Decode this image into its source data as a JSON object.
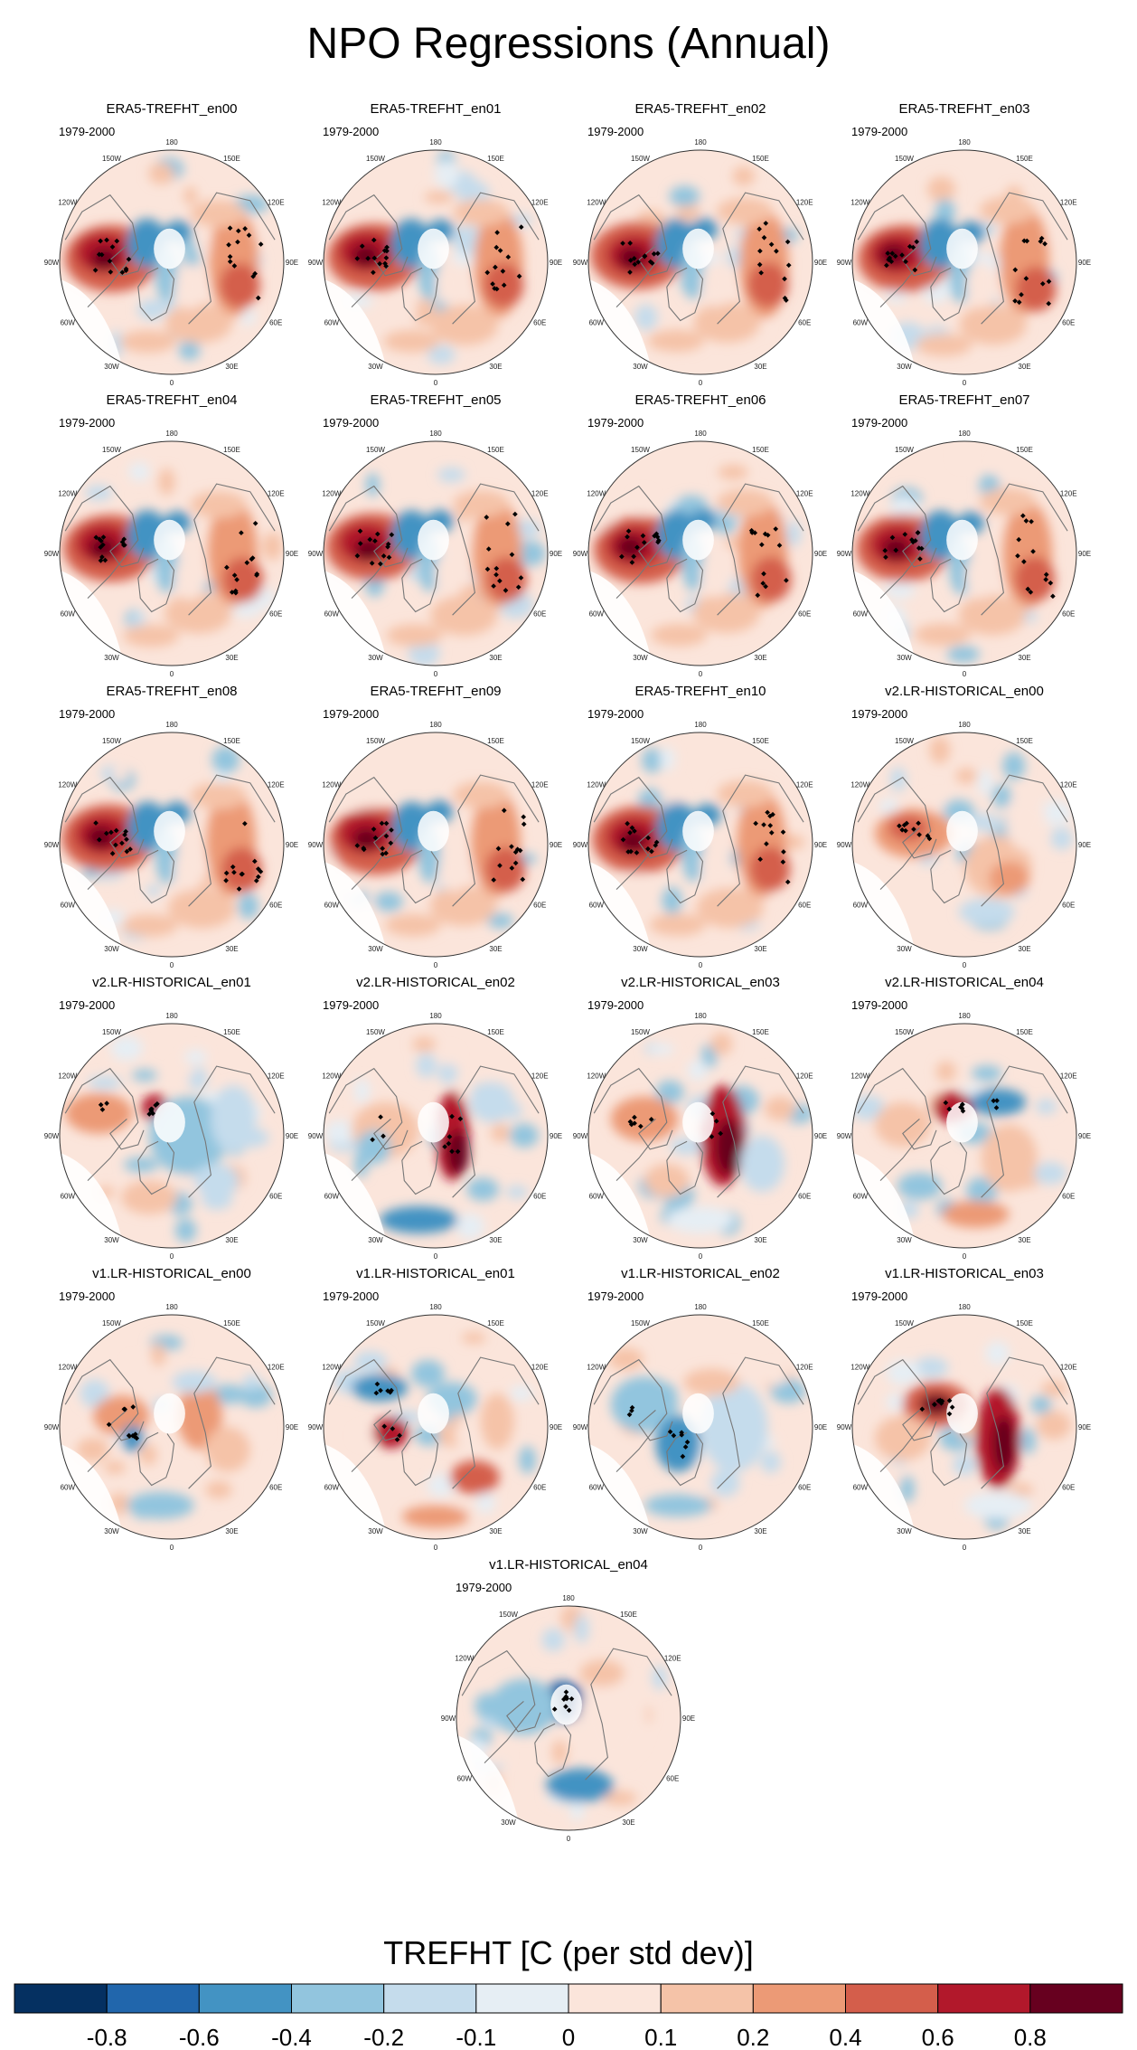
{
  "chart_data": {
    "type": "heatmap",
    "title": "NPO Regressions (Annual)",
    "projection": "polar stereographic, northern hemisphere",
    "period": "1979-2000",
    "longitude_labels": [
      "180",
      "150E",
      "120E",
      "90E",
      "60E",
      "30E",
      "0",
      "30W",
      "60W",
      "90W",
      "120W",
      "150W"
    ],
    "panels": [
      {
        "name": "ERA5-TREFHT_en00",
        "pattern": "era5"
      },
      {
        "name": "ERA5-TREFHT_en01",
        "pattern": "era5"
      },
      {
        "name": "ERA5-TREFHT_en02",
        "pattern": "era5"
      },
      {
        "name": "ERA5-TREFHT_en03",
        "pattern": "era5"
      },
      {
        "name": "ERA5-TREFHT_en04",
        "pattern": "era5"
      },
      {
        "name": "ERA5-TREFHT_en05",
        "pattern": "era5"
      },
      {
        "name": "ERA5-TREFHT_en06",
        "pattern": "era5"
      },
      {
        "name": "ERA5-TREFHT_en07",
        "pattern": "era5"
      },
      {
        "name": "ERA5-TREFHT_en08",
        "pattern": "era5"
      },
      {
        "name": "ERA5-TREFHT_en09",
        "pattern": "era5"
      },
      {
        "name": "ERA5-TREFHT_en10",
        "pattern": "era5"
      },
      {
        "name": "v2.LR-HISTORICAL_en00",
        "pattern": "model"
      },
      {
        "name": "v2.LR-HISTORICAL_en01",
        "pattern": "model"
      },
      {
        "name": "v2.LR-HISTORICAL_en02",
        "pattern": "model"
      },
      {
        "name": "v2.LR-HISTORICAL_en03",
        "pattern": "model"
      },
      {
        "name": "v2.LR-HISTORICAL_en04",
        "pattern": "model"
      },
      {
        "name": "v1.LR-HISTORICAL_en00",
        "pattern": "model"
      },
      {
        "name": "v1.LR-HISTORICAL_en01",
        "pattern": "model"
      },
      {
        "name": "v1.LR-HISTORICAL_en02",
        "pattern": "model"
      },
      {
        "name": "v1.LR-HISTORICAL_en03",
        "pattern": "model"
      },
      {
        "name": "v1.LR-HISTORICAL_en04",
        "pattern": "model"
      }
    ],
    "colorbar": {
      "label": "TREFHT [C (per std dev)]",
      "levels": [
        -0.8,
        -0.6,
        -0.4,
        -0.2,
        -0.1,
        0,
        0.1,
        0.2,
        0.4,
        0.6,
        0.8
      ],
      "tick_labels": [
        "-0.8",
        "-0.6",
        "-0.4",
        "-0.2",
        "-0.1",
        "0",
        "0.1",
        "0.2",
        "0.4",
        "0.6",
        "0.8"
      ],
      "colors": [
        "#053061",
        "#2166ac",
        "#4393c3",
        "#92c5de",
        "#c5dcec",
        "#e6eef4",
        "#fbe5db",
        "#f5c3a8",
        "#ec9a76",
        "#d45e4b",
        "#b2182b",
        "#67001f"
      ]
    }
  }
}
